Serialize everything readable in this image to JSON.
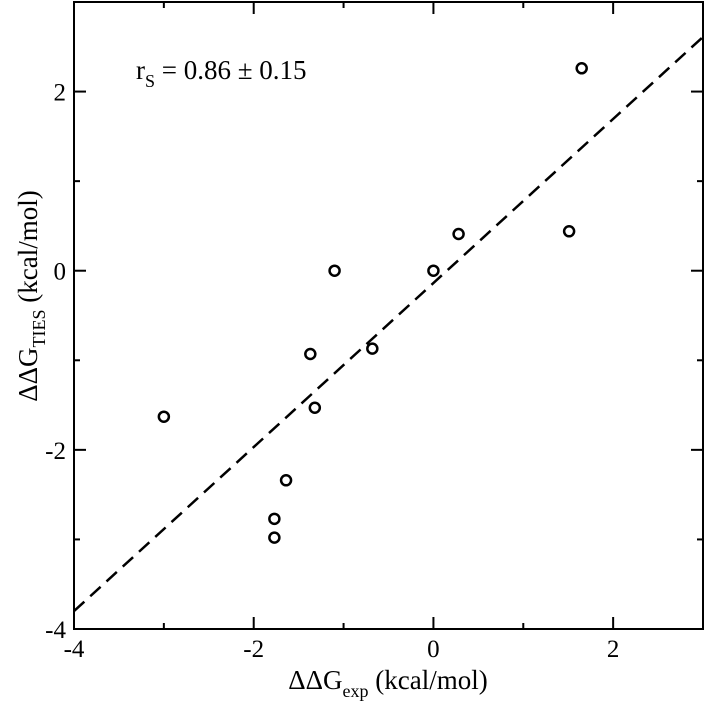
{
  "chart_data": {
    "type": "scatter",
    "title": "",
    "xlabel": {
      "main": "ΔΔG",
      "sub": "exp",
      "rest": " (kcal/mol)"
    },
    "ylabel": {
      "main": "ΔΔG",
      "sub": "TIES",
      "rest": " (kcal/mol)"
    },
    "xlim": [
      -4,
      3
    ],
    "ylim": [
      -4,
      3
    ],
    "xticks": [
      -4,
      -2,
      0,
      2
    ],
    "yticks": [
      -4,
      -2,
      0,
      2
    ],
    "xtick_labels": [
      "-4",
      "-2",
      "0",
      "2"
    ],
    "ytick_labels": [
      "-4",
      "-2",
      "0",
      "2"
    ],
    "grid": false,
    "annotation": {
      "main": "r",
      "sub": "S",
      "rest": " = 0.86 ± 0.15"
    },
    "series": [
      {
        "marker": "open-circle",
        "points": [
          {
            "x": 1.65,
            "y": 2.26
          },
          {
            "x": 1.51,
            "y": 0.44
          },
          {
            "x": 0.28,
            "y": 0.41
          },
          {
            "x": 0.0,
            "y": 0.0
          },
          {
            "x": -1.1,
            "y": 0.0
          },
          {
            "x": -0.68,
            "y": -0.87
          },
          {
            "x": -1.37,
            "y": -0.93
          },
          {
            "x": -1.32,
            "y": -1.53
          },
          {
            "x": -3.0,
            "y": -1.63
          },
          {
            "x": -1.64,
            "y": -2.34
          },
          {
            "x": -1.77,
            "y": -2.77
          },
          {
            "x": -1.77,
            "y": -2.98
          }
        ]
      }
    ],
    "fit_line": {
      "style": "dashed",
      "x": [
        -4,
        3
      ],
      "y": [
        -3.8,
        2.61
      ]
    }
  }
}
